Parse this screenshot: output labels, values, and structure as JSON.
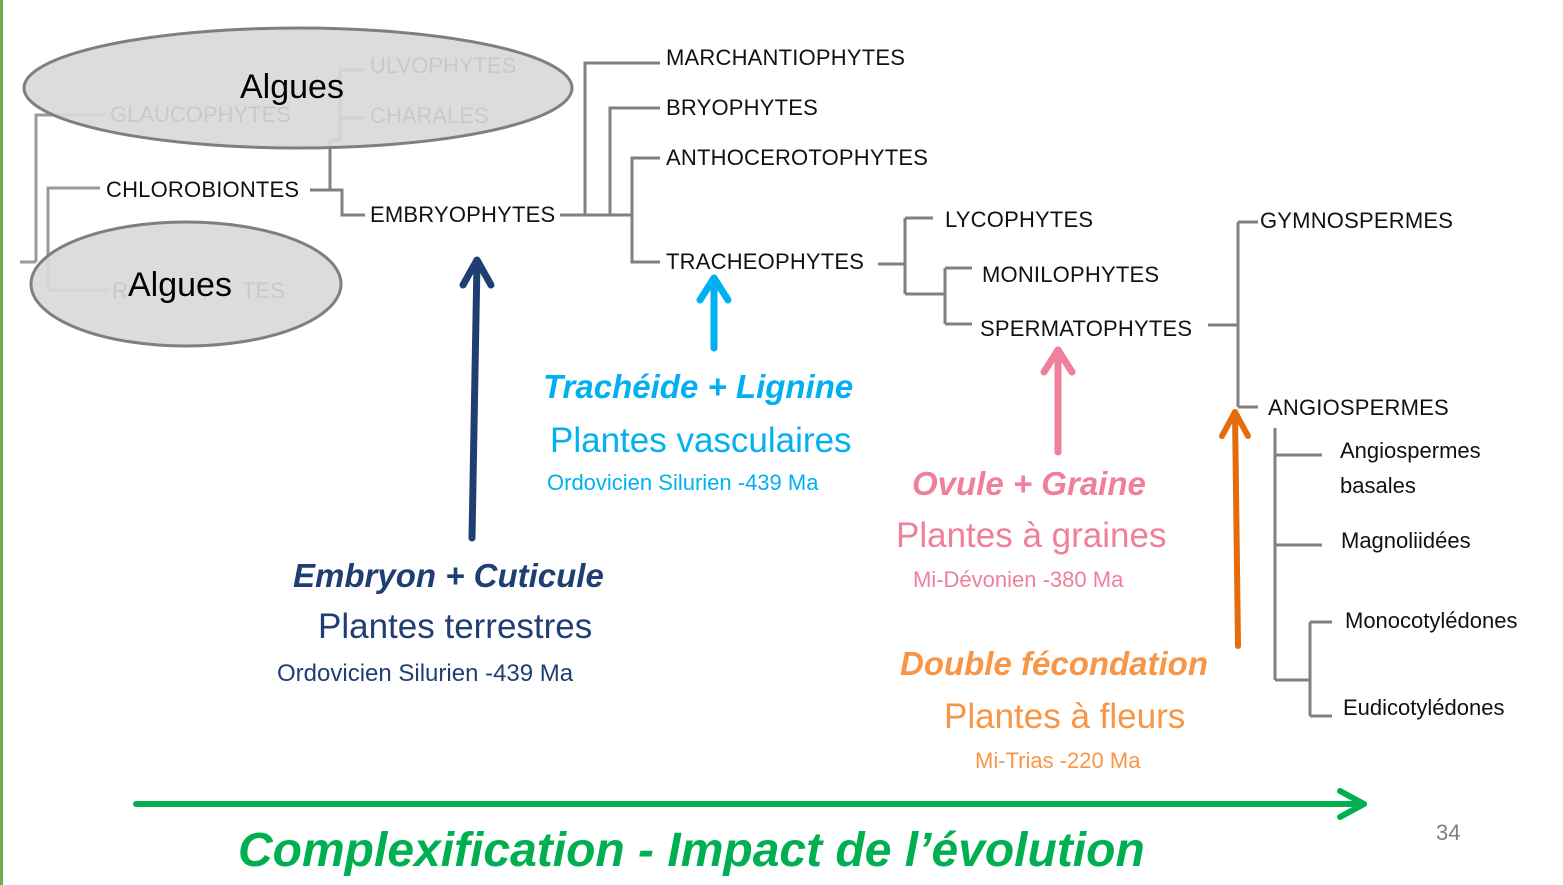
{
  "slide_number": "34",
  "algae_ovals": [
    "Algues",
    "Algues"
  ],
  "taxa": {
    "ulvophytes": "ULVOPHYTES",
    "glaucophytes": "GLAUCOPHYTES",
    "charales": "CHARALES",
    "chlorobiontes": "CHLOROBIONTES",
    "embryophytes": "EMBRYOPHYTES",
    "rhodophytes_fragment_left": "R",
    "rhodophytes_fragment_right": "TES",
    "marchantiophytes": "MARCHANTIOPHYTES",
    "bryophytes": "BRYOPHYTES",
    "anthocerotophytes": "ANTHOCEROTOPHYTES",
    "tracheophytes": "TRACHEOPHYTES",
    "lycophytes": "LYCOPHYTES",
    "monilophytes": "MONILOPHYTES",
    "spermatophytes": "SPERMATOPHYTES",
    "gymnospermes": "GYMNOSPERMES",
    "angiospermes": "ANGIOSPERMES",
    "angiospermes_basales_1": "Angiospermes",
    "angiospermes_basales_2": "basales",
    "magnoliidees": "Magnoliidées",
    "monocotyledones": "Monocotylédones",
    "eudicotyledones": "Eudicotylédones"
  },
  "events": {
    "terrestres": {
      "title": "Embryon  + Cuticule",
      "name": "Plantes terrestres",
      "date": "Ordovicien Silurien  -439 Ma"
    },
    "vasculaires": {
      "title": "Trachéide + Lignine",
      "name": "Plantes vasculaires",
      "date": "Ordovicien Silurien  -439 Ma"
    },
    "graines": {
      "title": "Ovule + Graine",
      "name": "Plantes à graines",
      "date": "Mi-Dévonien  -380 Ma"
    },
    "fleurs": {
      "title": "Double fécondation",
      "name": "Plantes à fleurs",
      "date": "Mi-Trias  -220 Ma"
    }
  },
  "footer_title": "Complexification - Impact de l’évolution",
  "colors": {
    "terrestres": "#1f3f73",
    "vasculaires": "#00b0f0",
    "graines": "#ef7f9b",
    "fleurs_arrow": "#e46c0a",
    "fleurs_text": "#f79646",
    "complexification": "#00b050",
    "tree_lines": "#7f7f7f"
  }
}
